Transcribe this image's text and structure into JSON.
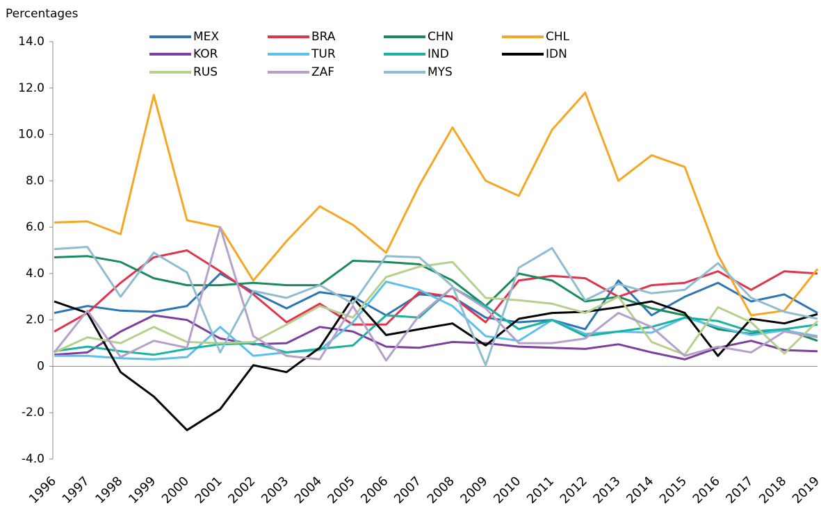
{
  "chart_data": {
    "type": "line",
    "ylabel": "Percentages",
    "categories": [
      "1996",
      "1997",
      "1998",
      "1999",
      "2000",
      "2001",
      "2002",
      "2003",
      "2004",
      "2005",
      "2006",
      "2007",
      "2008",
      "2009",
      "2010",
      "2011",
      "2012",
      "2013",
      "2014",
      "2015",
      "2016",
      "2017",
      "2018",
      "2019"
    ],
    "ylim": [
      -4,
      14
    ],
    "yticks": [
      {
        "value": -4,
        "label": "-4.0"
      },
      {
        "value": -2,
        "label": "-2.0"
      },
      0,
      {
        "value": 2,
        "label": "2.0"
      },
      {
        "value": 4,
        "label": "4.0"
      },
      {
        "value": 6,
        "label": "6.0"
      },
      {
        "value": 8,
        "label": "8.0"
      },
      {
        "value": 10,
        "label": "10.0"
      },
      {
        "value": 12,
        "label": "12.0"
      },
      {
        "value": 14,
        "label": "14.0"
      }
    ],
    "grid": false,
    "series": [
      {
        "name": "MEX",
        "color": "#2e75b6",
        "values": [
          2.3,
          2.6,
          2.4,
          2.35,
          2.6,
          4.0,
          3.2,
          2.5,
          3.2,
          3.0,
          2.2,
          3.1,
          3.0,
          2.1,
          1.9,
          2.0,
          1.6,
          3.7,
          2.2,
          3.0,
          3.6,
          2.8,
          3.1,
          2.3
        ]
      },
      {
        "name": "BRA",
        "color": "#e0334c",
        "values": [
          1.5,
          2.3,
          3.6,
          4.7,
          5.0,
          4.1,
          3.1,
          1.9,
          2.7,
          1.8,
          1.8,
          3.2,
          3.0,
          1.9,
          3.7,
          3.9,
          3.8,
          3.0,
          3.5,
          3.6,
          4.1,
          3.3,
          4.1,
          4.0
        ]
      },
      {
        "name": "CHN",
        "color": "#1a8a5a",
        "values": [
          4.7,
          4.75,
          4.5,
          3.8,
          3.5,
          3.5,
          3.6,
          3.5,
          3.5,
          4.55,
          4.5,
          4.4,
          3.7,
          2.6,
          4.0,
          3.7,
          2.8,
          3.0,
          2.5,
          2.2,
          1.6,
          1.4,
          1.6,
          1.1
        ]
      },
      {
        "name": "CHL",
        "color": "#f5a623",
        "values": [
          6.2,
          6.25,
          5.7,
          11.7,
          6.3,
          6.0,
          3.7,
          5.4,
          6.9,
          6.1,
          4.9,
          7.8,
          10.3,
          8.0,
          7.35,
          10.2,
          11.8,
          8.0,
          9.1,
          8.6,
          4.8,
          2.2,
          2.4,
          4.2
        ]
      },
      {
        "name": "KOR",
        "color": "#7b3f9e",
        "values": [
          0.5,
          0.6,
          1.5,
          2.2,
          2.0,
          1.2,
          0.95,
          1.0,
          1.7,
          1.5,
          0.85,
          0.8,
          1.05,
          1.0,
          0.85,
          0.8,
          0.75,
          0.95,
          0.6,
          0.3,
          0.8,
          1.1,
          0.7,
          0.65
        ]
      },
      {
        "name": "TUR",
        "color": "#5bc0eb",
        "values": [
          0.45,
          0.45,
          0.35,
          0.3,
          0.4,
          1.7,
          0.45,
          0.6,
          0.7,
          1.9,
          3.65,
          3.3,
          2.6,
          1.3,
          1.1,
          2.0,
          1.4,
          1.5,
          1.45,
          2.1,
          1.7,
          1.35,
          1.55,
          1.3
        ]
      },
      {
        "name": "IND",
        "color": "#1ab3a0",
        "values": [
          0.65,
          0.85,
          0.65,
          0.5,
          0.75,
          0.95,
          1.0,
          0.6,
          0.75,
          0.9,
          2.2,
          2.1,
          3.4,
          2.6,
          1.6,
          2.0,
          1.3,
          1.5,
          1.7,
          2.1,
          1.95,
          1.5,
          1.6,
          1.8
        ]
      },
      {
        "name": "IDN",
        "color": "#000000",
        "values": [
          2.8,
          2.3,
          -0.25,
          -1.3,
          -2.75,
          -1.85,
          0.05,
          -0.25,
          0.8,
          2.95,
          1.35,
          1.6,
          1.85,
          0.9,
          2.05,
          2.3,
          2.35,
          2.55,
          2.8,
          2.3,
          0.45,
          2.05,
          1.85,
          2.25
        ]
      },
      {
        "name": "RUS",
        "color": "#b5cf8d",
        "values": [
          0.6,
          1.25,
          1.0,
          1.7,
          1.05,
          1.0,
          1.05,
          1.8,
          2.6,
          2.1,
          3.85,
          4.3,
          4.5,
          2.95,
          2.85,
          2.7,
          2.3,
          3.0,
          1.05,
          0.5,
          2.55,
          1.9,
          0.55,
          1.95
        ]
      },
      {
        "name": "ZAF",
        "color": "#b4a0c8",
        "values": [
          0.6,
          2.4,
          0.4,
          1.1,
          0.8,
          6.0,
          1.3,
          0.45,
          0.3,
          2.6,
          0.25,
          2.2,
          3.4,
          2.5,
          1.0,
          1.0,
          1.2,
          2.3,
          1.7,
          0.45,
          0.85,
          0.6,
          1.5,
          1.25
        ]
      },
      {
        "name": "MYS",
        "color": "#8fbccf",
        "values": [
          5.05,
          5.15,
          3.0,
          4.9,
          4.05,
          0.6,
          3.25,
          2.95,
          3.5,
          2.7,
          4.75,
          4.7,
          3.45,
          0.05,
          4.25,
          5.1,
          2.85,
          3.55,
          3.15,
          3.3,
          4.45,
          2.95,
          2.35,
          2.05
        ]
      }
    ]
  }
}
